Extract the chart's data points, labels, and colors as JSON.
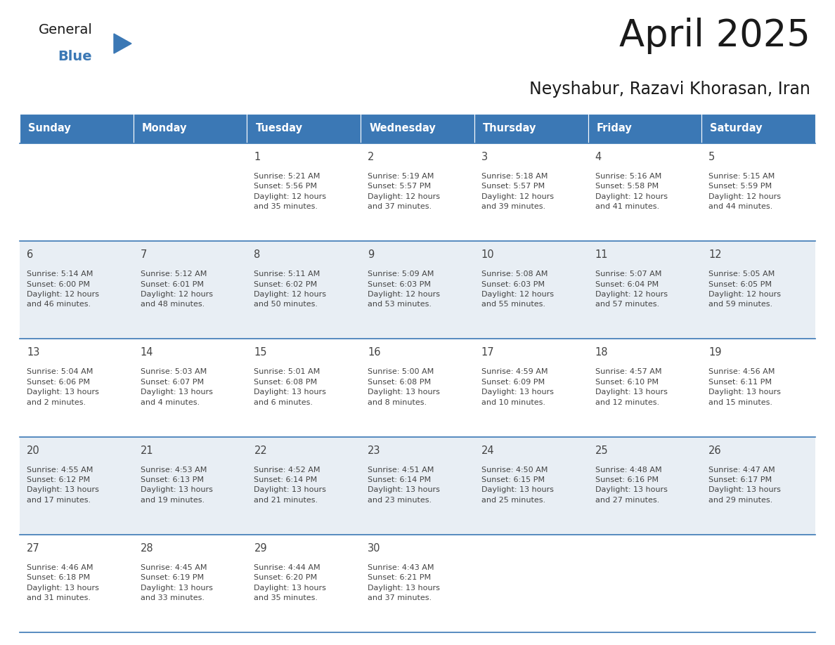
{
  "title": "April 2025",
  "subtitle": "Neyshabur, Razavi Khorasan, Iran",
  "days_of_week": [
    "Sunday",
    "Monday",
    "Tuesday",
    "Wednesday",
    "Thursday",
    "Friday",
    "Saturday"
  ],
  "header_bg": "#3b78b5",
  "header_text": "#ffffff",
  "row_bg": [
    "#ffffff",
    "#e8eef4",
    "#ffffff",
    "#e8eef4",
    "#ffffff"
  ],
  "row_line_color": "#3b78b5",
  "text_color": "#444444",
  "title_color": "#1a1a1a",
  "logo_general_color": "#1a1a1a",
  "logo_blue_color": "#3b78b5",
  "logo_triangle_color": "#3b78b5",
  "calendar_data": [
    [
      {
        "day": "",
        "info": ""
      },
      {
        "day": "",
        "info": ""
      },
      {
        "day": "1",
        "info": "Sunrise: 5:21 AM\nSunset: 5:56 PM\nDaylight: 12 hours\nand 35 minutes."
      },
      {
        "day": "2",
        "info": "Sunrise: 5:19 AM\nSunset: 5:57 PM\nDaylight: 12 hours\nand 37 minutes."
      },
      {
        "day": "3",
        "info": "Sunrise: 5:18 AM\nSunset: 5:57 PM\nDaylight: 12 hours\nand 39 minutes."
      },
      {
        "day": "4",
        "info": "Sunrise: 5:16 AM\nSunset: 5:58 PM\nDaylight: 12 hours\nand 41 minutes."
      },
      {
        "day": "5",
        "info": "Sunrise: 5:15 AM\nSunset: 5:59 PM\nDaylight: 12 hours\nand 44 minutes."
      }
    ],
    [
      {
        "day": "6",
        "info": "Sunrise: 5:14 AM\nSunset: 6:00 PM\nDaylight: 12 hours\nand 46 minutes."
      },
      {
        "day": "7",
        "info": "Sunrise: 5:12 AM\nSunset: 6:01 PM\nDaylight: 12 hours\nand 48 minutes."
      },
      {
        "day": "8",
        "info": "Sunrise: 5:11 AM\nSunset: 6:02 PM\nDaylight: 12 hours\nand 50 minutes."
      },
      {
        "day": "9",
        "info": "Sunrise: 5:09 AM\nSunset: 6:03 PM\nDaylight: 12 hours\nand 53 minutes."
      },
      {
        "day": "10",
        "info": "Sunrise: 5:08 AM\nSunset: 6:03 PM\nDaylight: 12 hours\nand 55 minutes."
      },
      {
        "day": "11",
        "info": "Sunrise: 5:07 AM\nSunset: 6:04 PM\nDaylight: 12 hours\nand 57 minutes."
      },
      {
        "day": "12",
        "info": "Sunrise: 5:05 AM\nSunset: 6:05 PM\nDaylight: 12 hours\nand 59 minutes."
      }
    ],
    [
      {
        "day": "13",
        "info": "Sunrise: 5:04 AM\nSunset: 6:06 PM\nDaylight: 13 hours\nand 2 minutes."
      },
      {
        "day": "14",
        "info": "Sunrise: 5:03 AM\nSunset: 6:07 PM\nDaylight: 13 hours\nand 4 minutes."
      },
      {
        "day": "15",
        "info": "Sunrise: 5:01 AM\nSunset: 6:08 PM\nDaylight: 13 hours\nand 6 minutes."
      },
      {
        "day": "16",
        "info": "Sunrise: 5:00 AM\nSunset: 6:08 PM\nDaylight: 13 hours\nand 8 minutes."
      },
      {
        "day": "17",
        "info": "Sunrise: 4:59 AM\nSunset: 6:09 PM\nDaylight: 13 hours\nand 10 minutes."
      },
      {
        "day": "18",
        "info": "Sunrise: 4:57 AM\nSunset: 6:10 PM\nDaylight: 13 hours\nand 12 minutes."
      },
      {
        "day": "19",
        "info": "Sunrise: 4:56 AM\nSunset: 6:11 PM\nDaylight: 13 hours\nand 15 minutes."
      }
    ],
    [
      {
        "day": "20",
        "info": "Sunrise: 4:55 AM\nSunset: 6:12 PM\nDaylight: 13 hours\nand 17 minutes."
      },
      {
        "day": "21",
        "info": "Sunrise: 4:53 AM\nSunset: 6:13 PM\nDaylight: 13 hours\nand 19 minutes."
      },
      {
        "day": "22",
        "info": "Sunrise: 4:52 AM\nSunset: 6:14 PM\nDaylight: 13 hours\nand 21 minutes."
      },
      {
        "day": "23",
        "info": "Sunrise: 4:51 AM\nSunset: 6:14 PM\nDaylight: 13 hours\nand 23 minutes."
      },
      {
        "day": "24",
        "info": "Sunrise: 4:50 AM\nSunset: 6:15 PM\nDaylight: 13 hours\nand 25 minutes."
      },
      {
        "day": "25",
        "info": "Sunrise: 4:48 AM\nSunset: 6:16 PM\nDaylight: 13 hours\nand 27 minutes."
      },
      {
        "day": "26",
        "info": "Sunrise: 4:47 AM\nSunset: 6:17 PM\nDaylight: 13 hours\nand 29 minutes."
      }
    ],
    [
      {
        "day": "27",
        "info": "Sunrise: 4:46 AM\nSunset: 6:18 PM\nDaylight: 13 hours\nand 31 minutes."
      },
      {
        "day": "28",
        "info": "Sunrise: 4:45 AM\nSunset: 6:19 PM\nDaylight: 13 hours\nand 33 minutes."
      },
      {
        "day": "29",
        "info": "Sunrise: 4:44 AM\nSunset: 6:20 PM\nDaylight: 13 hours\nand 35 minutes."
      },
      {
        "day": "30",
        "info": "Sunrise: 4:43 AM\nSunset: 6:21 PM\nDaylight: 13 hours\nand 37 minutes."
      },
      {
        "day": "",
        "info": ""
      },
      {
        "day": "",
        "info": ""
      },
      {
        "day": "",
        "info": ""
      }
    ]
  ]
}
